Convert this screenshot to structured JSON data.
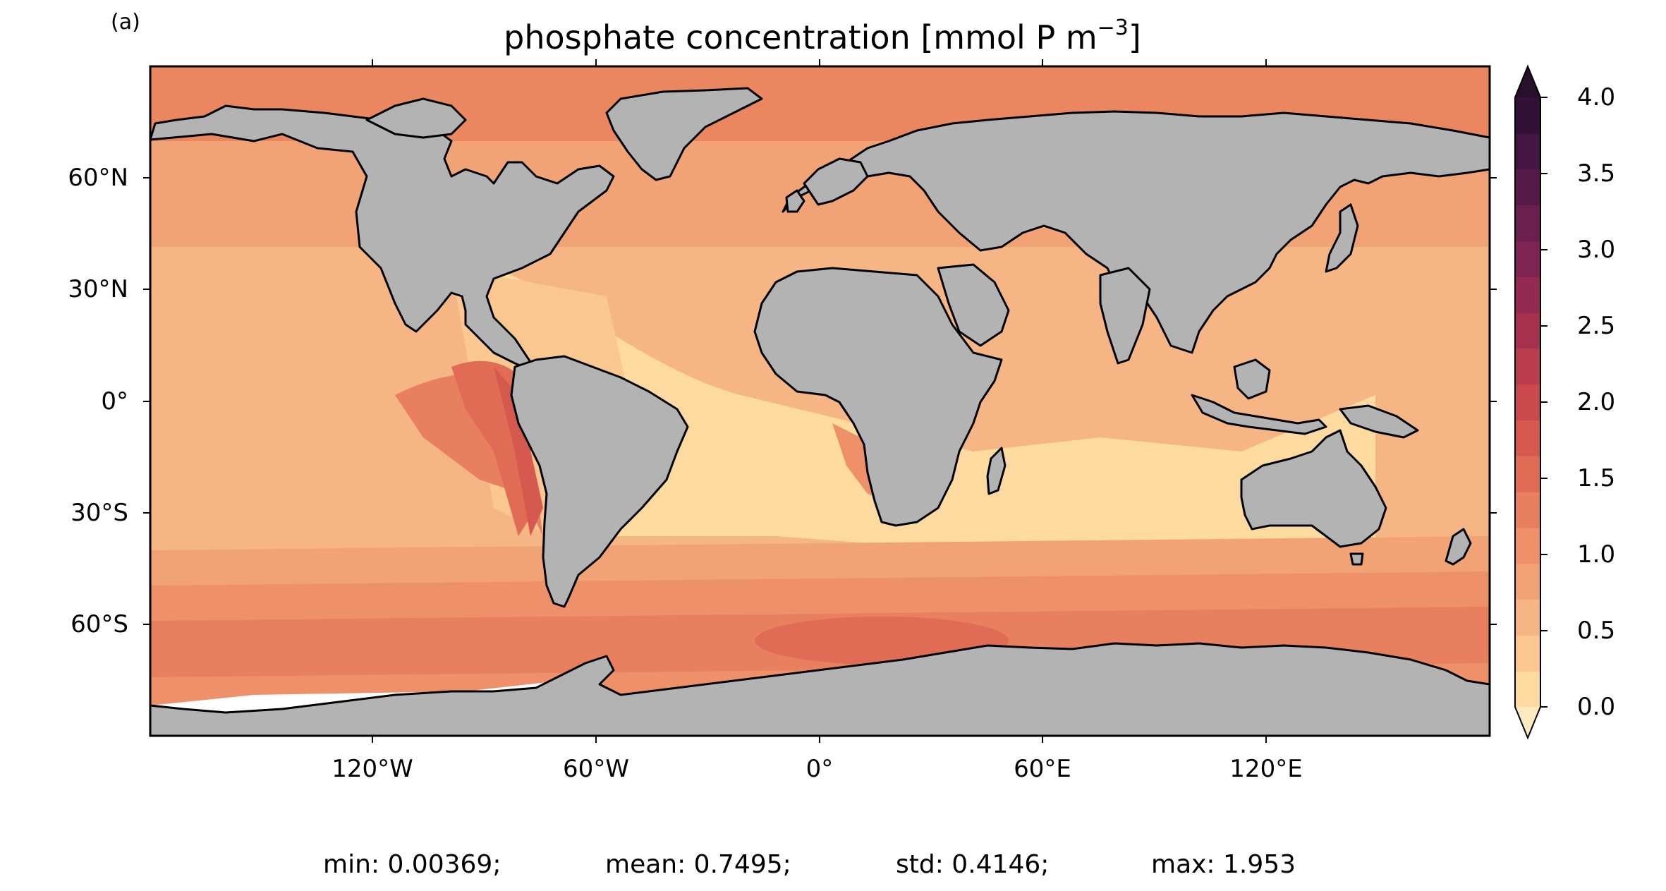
{
  "panel_label": "(a)",
  "title": {
    "main": "phosphate concentration [mmol P m",
    "exponent": "−3",
    "close": "]"
  },
  "map": {
    "projection": "plate-carree",
    "lon_ticks": [
      "120°W",
      "60°W",
      "0°",
      "60°E",
      "120°E"
    ],
    "lat_ticks": [
      "60°N",
      "30°N",
      "0°",
      "30°S",
      "60°S"
    ],
    "land_color": "#b3b3b3",
    "coastline_color": "#000000",
    "no_data_color": "#ffffff"
  },
  "colorbar": {
    "colormap": "sequential (cream to dark purple)",
    "extend": "both",
    "tick_labels": [
      "4.0",
      "3.5",
      "3.0",
      "2.5",
      "2.0",
      "1.5",
      "1.0",
      "0.5",
      "0.0"
    ],
    "range": [
      0.0,
      4.0
    ],
    "colors": [
      "#fddba0",
      "#fac791",
      "#f6b584",
      "#f2a376",
      "#ee916b",
      "#e87f5f",
      "#e06c56",
      "#d6594f",
      "#c94a4c",
      "#b93d4d",
      "#a5314f",
      "#922a51",
      "#7e2452",
      "#6a1f4f",
      "#561a4a",
      "#431643",
      "#331136"
    ],
    "under_color": "#fde9c0",
    "over_color": "#2a0f2c"
  },
  "stats": {
    "min": "min: 0.00369;",
    "mean": "mean: 0.7495;",
    "std": "std: 0.4146;",
    "max": "max: 1.953"
  }
}
